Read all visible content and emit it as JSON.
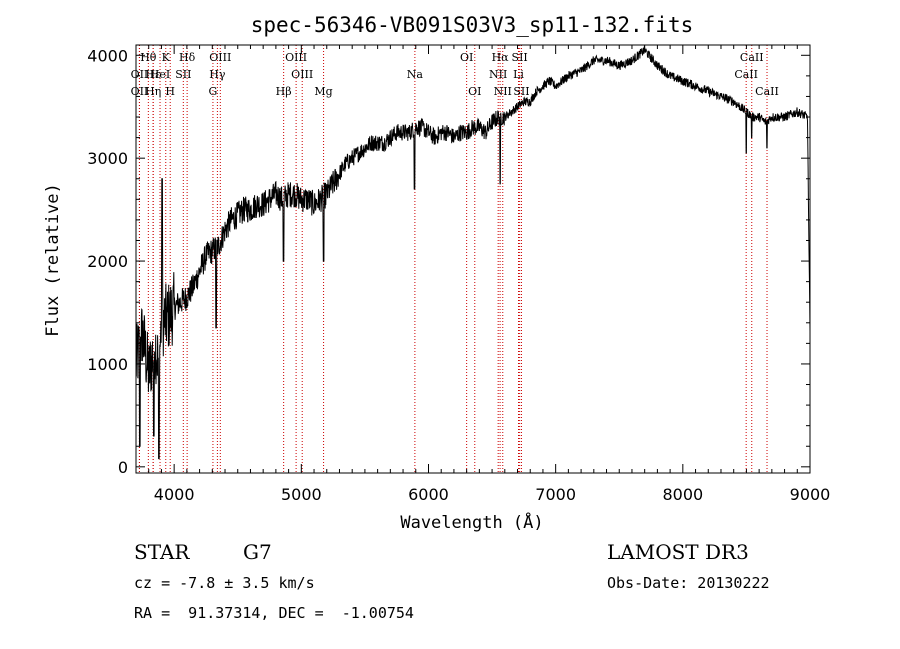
{
  "chart_data": {
    "type": "line",
    "title": "spec-56346-VB091S03V3_sp11-132.fits",
    "xlabel": "Wavelength (Å)",
    "ylabel": "Flux (relative)",
    "xlim": [
      3700,
      9000
    ],
    "ylim": [
      -60,
      4100
    ],
    "xticks": [
      4000,
      5000,
      6000,
      7000,
      8000,
      9000
    ],
    "yticks": [
      0,
      1000,
      2000,
      3000,
      4000
    ],
    "line_color": "#000000",
    "marker_color": "#cc0000",
    "spectrum": {
      "x": [
        3700,
        3750,
        3800,
        3850,
        3880,
        3900,
        3950,
        4000,
        4050,
        4100,
        4150,
        4200,
        4250,
        4300,
        4350,
        4400,
        4450,
        4500,
        4550,
        4600,
        4650,
        4700,
        4750,
        4800,
        4850,
        4900,
        4950,
        5000,
        5050,
        5100,
        5150,
        5200,
        5250,
        5300,
        5350,
        5400,
        5450,
        5500,
        5550,
        5600,
        5650,
        5700,
        5750,
        5800,
        5850,
        5900,
        5950,
        6000,
        6050,
        6100,
        6150,
        6200,
        6250,
        6300,
        6350,
        6400,
        6450,
        6500,
        6550,
        6600,
        6650,
        6700,
        6750,
        6800,
        6850,
        6900,
        6950,
        7000,
        7100,
        7200,
        7300,
        7400,
        7500,
        7600,
        7700,
        7800,
        7900,
        8000,
        8100,
        8200,
        8300,
        8400,
        8500,
        8550,
        8600,
        8650,
        8700,
        8800,
        8900,
        8980,
        9000
      ],
      "y": [
        1000,
        1300,
        900,
        1200,
        1000,
        1400,
        1450,
        1550,
        1600,
        1650,
        1750,
        1900,
        2050,
        2100,
        2150,
        2300,
        2400,
        2450,
        2500,
        2500,
        2550,
        2550,
        2600,
        2650,
        2600,
        2650,
        2650,
        2600,
        2600,
        2550,
        2600,
        2650,
        2750,
        2850,
        2950,
        3000,
        3050,
        3100,
        3150,
        3150,
        3150,
        3200,
        3250,
        3250,
        3250,
        3300,
        3300,
        3250,
        3200,
        3250,
        3250,
        3200,
        3250,
        3250,
        3300,
        3300,
        3250,
        3350,
        3400,
        3400,
        3450,
        3500,
        3550,
        3550,
        3650,
        3700,
        3750,
        3700,
        3800,
        3850,
        3950,
        3950,
        3900,
        3950,
        4050,
        3900,
        3800,
        3750,
        3700,
        3650,
        3600,
        3550,
        3450,
        3400,
        3400,
        3350,
        3400,
        3400,
        3450,
        3400,
        1300
      ]
    },
    "absorption_dips": [
      {
        "x": 3730,
        "y": 200
      },
      {
        "x": 3840,
        "y": 300
      },
      {
        "x": 3880,
        "y": 80
      },
      {
        "x": 3905,
        "y": 2800
      },
      {
        "x": 4330,
        "y": 1350
      },
      {
        "x": 4860,
        "y": 2000
      },
      {
        "x": 5175,
        "y": 2000
      },
      {
        "x": 5890,
        "y": 2700
      },
      {
        "x": 6563,
        "y": 2750
      },
      {
        "x": 8498,
        "y": 3050
      },
      {
        "x": 8542,
        "y": 3200
      },
      {
        "x": 8662,
        "y": 3100
      }
    ],
    "line_markers": [
      {
        "label": "Hθ",
        "wavelength": 3797,
        "row": 0
      },
      {
        "label": "OII",
        "wavelength": 3727,
        "row": 1
      },
      {
        "label": "OII",
        "wavelength": 3727,
        "row": 2
      },
      {
        "label": "Hε",
        "wavelength": 3835,
        "row": 1
      },
      {
        "label": "Hη",
        "wavelength": 3835,
        "row": 2
      },
      {
        "label": "K",
        "wavelength": 3934,
        "row": 0
      },
      {
        "label": "HeI",
        "wavelength": 3889,
        "row": 1
      },
      {
        "label": "H",
        "wavelength": 3969,
        "row": 2
      },
      {
        "label": "SII",
        "wavelength": 4072,
        "row": 1
      },
      {
        "label": "Hδ",
        "wavelength": 4102,
        "row": 0
      },
      {
        "label": "OIII",
        "wavelength": 4363,
        "row": 0
      },
      {
        "label": "Hγ",
        "wavelength": 4340,
        "row": 1
      },
      {
        "label": "G",
        "wavelength": 4305,
        "row": 2
      },
      {
        "label": "Hβ",
        "wavelength": 4861,
        "row": 2
      },
      {
        "label": "OIII",
        "wavelength": 4959,
        "row": 0
      },
      {
        "label": "OIII",
        "wavelength": 5007,
        "row": 1
      },
      {
        "label": "Mg",
        "wavelength": 5175,
        "row": 2
      },
      {
        "label": "Na",
        "wavelength": 5893,
        "row": 1
      },
      {
        "label": "OI",
        "wavelength": 6300,
        "row": 0
      },
      {
        "label": "OI",
        "wavelength": 6364,
        "row": 2
      },
      {
        "label": "Hα",
        "wavelength": 6563,
        "row": 0
      },
      {
        "label": "SII",
        "wavelength": 6717,
        "row": 0
      },
      {
        "label": "NII",
        "wavelength": 6548,
        "row": 1
      },
      {
        "label": "Li",
        "wavelength": 6708,
        "row": 1
      },
      {
        "label": "NII",
        "wavelength": 6584,
        "row": 2
      },
      {
        "label": "SII",
        "wavelength": 6731,
        "row": 2
      },
      {
        "label": "CaII",
        "wavelength": 8542,
        "row": 0
      },
      {
        "label": "CaII",
        "wavelength": 8498,
        "row": 1
      },
      {
        "label": "CaII",
        "wavelength": 8662,
        "row": 2
      }
    ]
  },
  "info": {
    "class_label": "STAR",
    "subclass": "G7",
    "survey": "LAMOST DR3",
    "cz_line": "cz = -7.8 ± 3.5 km/s",
    "obs_date_line": "Obs-Date: 20130222",
    "coords_line": "RA =  91.37314, DEC =  -1.00754"
  }
}
